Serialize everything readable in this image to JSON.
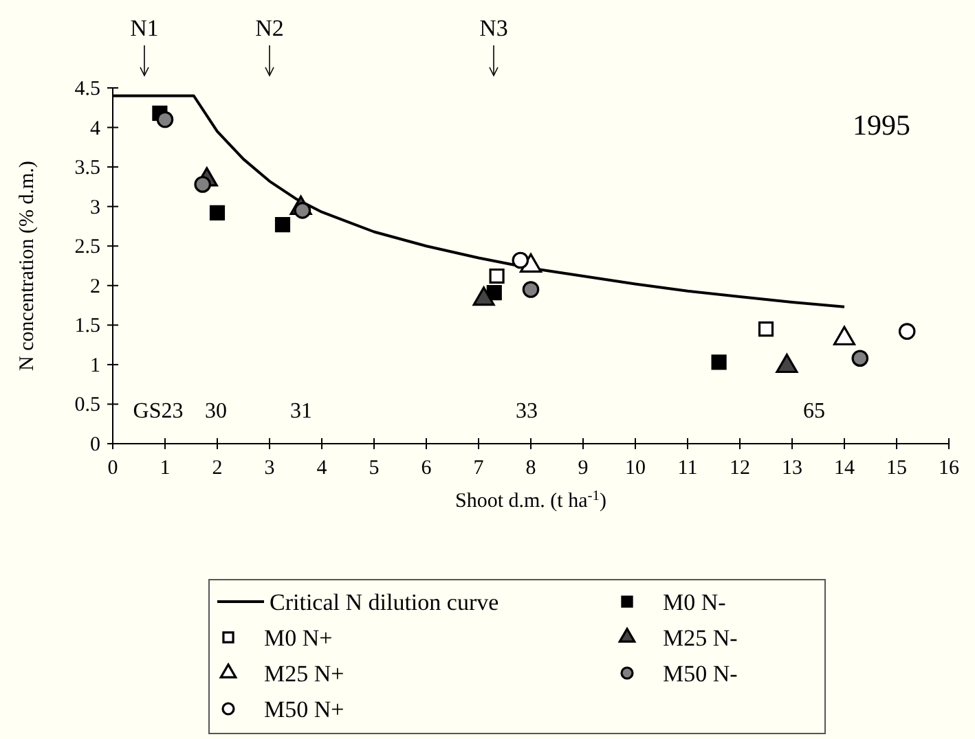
{
  "chart_data": {
    "type": "scatter",
    "xlabel": "Shoot d.m. (t ha$^{-1}$)",
    "ylabel": "N concentration (% d.m.)",
    "xlim": [
      0,
      16
    ],
    "xticks": [
      0,
      1,
      2,
      3,
      4,
      5,
      6,
      7,
      8,
      9,
      10,
      11,
      12,
      13,
      14,
      15,
      16
    ],
    "ylim": [
      0,
      4.5
    ],
    "yticks": [
      0,
      0.5,
      1,
      1.5,
      2,
      2.5,
      3,
      3.5,
      4,
      4.5
    ],
    "grid": false,
    "legend": "bottom",
    "annotations": [
      "1995",
      "N1",
      "N2",
      "N3",
      "GS23",
      "30",
      "31",
      "33",
      "65"
    ],
    "series": [
      {
        "name": "Critical N dilution curve",
        "type": "line",
        "color": "#000000",
        "marker": "none",
        "line_style": "solid",
        "x": [
          0,
          1.55,
          2,
          2.5,
          3,
          3.5,
          4,
          5,
          6,
          7,
          8,
          9,
          10,
          11,
          12,
          13,
          14
        ],
        "values": [
          4.4,
          4.4,
          3.95,
          3.6,
          3.32,
          3.1,
          2.93,
          2.68,
          2.5,
          2.35,
          2.22,
          2.12,
          2.02,
          1.93,
          1.86,
          1.79,
          1.73
        ]
      },
      {
        "name": "M0 N+",
        "color": "#ffffff",
        "marker": "square",
        "x": [
          7.35,
          12.5
        ],
        "values": [
          2.12,
          1.45
        ]
      },
      {
        "name": "M25 N+",
        "color": "#ffffff",
        "marker": "triangle",
        "x": [
          8.0,
          14.0
        ],
        "values": [
          2.25,
          1.33
        ]
      },
      {
        "name": "M50 N+",
        "color": "#ffffff",
        "marker": "circle",
        "x": [
          7.8,
          15.2
        ],
        "values": [
          2.32,
          1.42
        ]
      },
      {
        "name": "M0 N-",
        "color": "#000000",
        "marker": "square",
        "x": [
          0.9,
          2.0,
          3.25,
          7.3,
          11.6
        ],
        "values": [
          4.18,
          2.92,
          2.77,
          1.91,
          1.03
        ]
      },
      {
        "name": "M25 N-",
        "color": "#444444",
        "marker": "triangle",
        "x": [
          1.8,
          3.6,
          7.1,
          12.9
        ],
        "values": [
          3.34,
          2.98,
          1.83,
          0.98
        ]
      },
      {
        "name": "M50 N-",
        "color": "#808080",
        "marker": "circle",
        "x": [
          1.0,
          1.72,
          3.63,
          8.0,
          14.3
        ],
        "values": [
          4.1,
          3.28,
          2.95,
          1.95,
          1.08
        ]
      }
    ]
  }
}
